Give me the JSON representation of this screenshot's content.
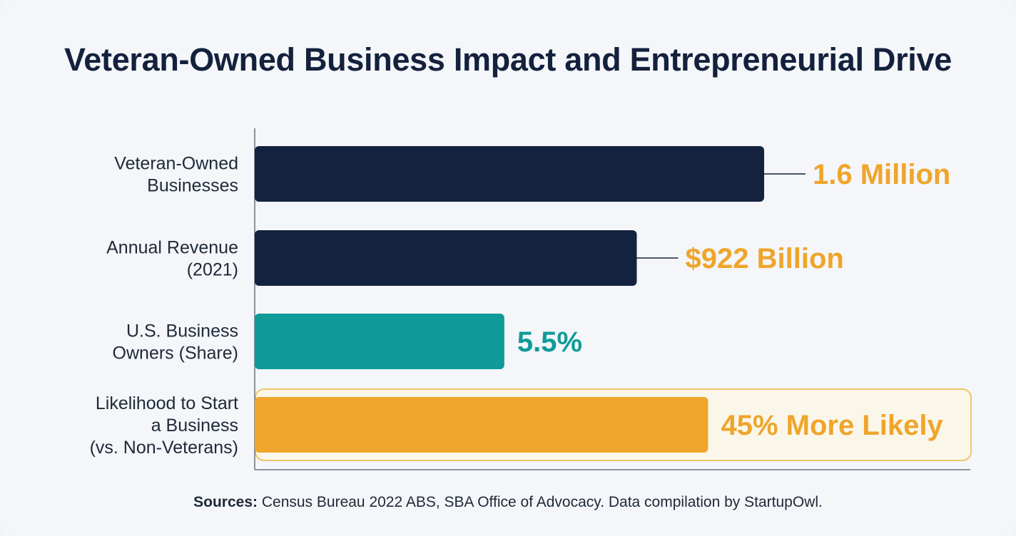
{
  "colors": {
    "navy": "#13223f",
    "teal": "#0f9b98",
    "amber": "#efa52b",
    "highlight_border": "#f0c56a",
    "axis": "#6b7280"
  },
  "chart_data": {
    "type": "bar",
    "orientation": "horizontal",
    "title": "Veteran-Owned Business Impact and Entrepreneurial Drive",
    "categories": [
      [
        "Veteran-Owned",
        "Businesses"
      ],
      [
        "Annual Revenue",
        "(2021)"
      ],
      [
        "U.S. Business",
        "Owners (Share)"
      ],
      [
        "Likelihood to Start",
        "a Business",
        "(vs. Non-Veterans)"
      ]
    ],
    "values": [
      100,
      75,
      49,
      89
    ],
    "value_scale": "relative length (0-100), bars not drawn to a common numeric axis",
    "value_labels": [
      "1.6 Million",
      "$922 Billion",
      "5.5%",
      "45% More Likely"
    ],
    "bar_colors": [
      "#13223f",
      "#13223f",
      "#0f9b98",
      "#efa52b"
    ],
    "label_colors": [
      "#efa52b",
      "#efa52b",
      "#0f9b98",
      "#efa52b"
    ],
    "connector_lines": [
      true,
      true,
      false,
      false
    ],
    "highlighted": [
      false,
      false,
      false,
      true
    ],
    "xlabel": "",
    "ylabel": "",
    "grid": false,
    "legend": "none"
  },
  "footer": {
    "source_label": "Sources:",
    "source_text": " Census Bureau 2022 ABS, SBA Office of Advocacy. Data compilation by StartupOwl."
  }
}
